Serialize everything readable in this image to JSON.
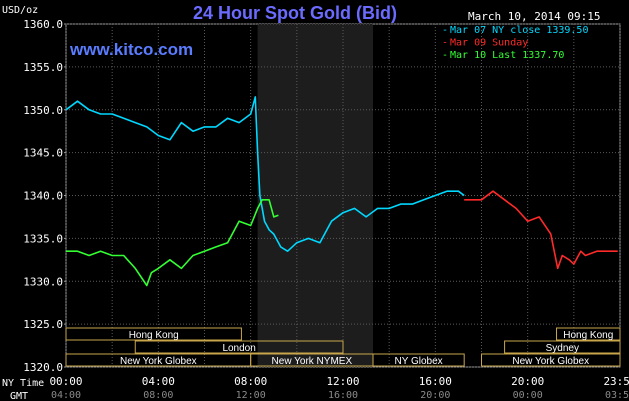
{
  "title": "24 Hour Spot Gold (Bid)",
  "brand": "www.kitco.com",
  "timestamp": "March 10, 2014 09:15",
  "legend": [
    {
      "text": "Mar 07 NY close 1339.50",
      "color": "#00d8ff"
    },
    {
      "text": "Mar 09 Sunday",
      "color": "#ff2a2a"
    },
    {
      "text": "Mar 10 Last 1337.70",
      "color": "#33ff33"
    }
  ],
  "axis": {
    "unit": "USD/oz",
    "ny_time_label": "NY Time",
    "gmt_label": "GMT",
    "y_ticks": [
      "1360.0",
      "1355.0",
      "1350.0",
      "1345.0",
      "1340.0",
      "1335.0",
      "1330.0",
      "1325.0",
      "1320.0"
    ],
    "x_ticks_ny": [
      "00:00",
      "04:00",
      "08:00",
      "12:00",
      "16:00",
      "20:00",
      "23:59"
    ],
    "x_ticks_gmt": [
      "04:00",
      "08:00",
      "12:00",
      "16:00",
      "20:00",
      "00:00",
      "03:59"
    ]
  },
  "sessions": [
    {
      "label": "Hong Kong",
      "start": 0,
      "end": 7.6,
      "row": 0
    },
    {
      "label": "London",
      "start": 3,
      "end": 12,
      "row": 1
    },
    {
      "label": "New York Globex",
      "start": 0,
      "end": 8,
      "row": 2
    },
    {
      "label": "New York NYMEX",
      "start": 8,
      "end": 13.3,
      "row": 2
    },
    {
      "label": "NY Globex",
      "start": 13.3,
      "end": 17.25,
      "row": 2
    },
    {
      "label": "Hong Kong",
      "start": 21.25,
      "end": 24,
      "row": 0
    },
    {
      "label": "Sydney",
      "start": 19,
      "end": 24,
      "row": 1
    },
    {
      "label": "New York Globex",
      "start": 18,
      "end": 24,
      "row": 2
    }
  ],
  "chart_data": {
    "type": "line",
    "title": "24 Hour Spot Gold (Bid)",
    "ylabel": "USD/oz",
    "xlabel": "NY Time",
    "ylim": [
      1320,
      1360
    ],
    "xlim": [
      0,
      24
    ],
    "highlight_range": [
      8.3,
      13.3
    ],
    "series": [
      {
        "name": "Mar 07 NY close 1339.50",
        "color": "#00d8ff",
        "x": [
          0,
          0.5,
          1,
          1.5,
          2,
          2.5,
          3,
          3.5,
          4,
          4.5,
          5,
          5.5,
          6,
          6.5,
          7,
          7.5,
          8,
          8.2,
          8.3,
          8.4,
          8.6,
          8.8,
          9,
          9.3,
          9.6,
          10,
          10.5,
          11,
          11.5,
          12,
          12.5,
          13,
          13.5,
          14,
          14.5,
          15,
          15.5,
          16,
          16.5,
          17,
          17.25
        ],
        "y": [
          1350.0,
          1351.0,
          1350.0,
          1349.5,
          1349.5,
          1349.0,
          1348.5,
          1348.0,
          1347.0,
          1346.5,
          1348.5,
          1347.5,
          1348.0,
          1348.0,
          1349.0,
          1348.5,
          1349.5,
          1351.5,
          1345.0,
          1340.0,
          1337.0,
          1336.0,
          1335.5,
          1334.0,
          1333.5,
          1334.5,
          1335.0,
          1334.5,
          1337.0,
          1338.0,
          1338.5,
          1337.5,
          1338.5,
          1338.5,
          1339.0,
          1339.0,
          1339.5,
          1340.0,
          1340.5,
          1340.5,
          1340.0
        ]
      },
      {
        "name": "Mar 09 Sunday",
        "color": "#ff2a2a",
        "x": [
          17.25,
          17.5,
          18,
          18.5,
          19,
          19.5,
          20,
          20.5,
          21,
          21.3,
          21.5,
          21.8,
          22,
          22.3,
          22.5,
          23,
          23.5,
          23.9
        ],
        "y": [
          1339.5,
          1339.5,
          1339.5,
          1340.5,
          1339.5,
          1338.5,
          1337.0,
          1337.5,
          1335.5,
          1331.5,
          1333.0,
          1332.5,
          1332.0,
          1333.5,
          1333.0,
          1333.5,
          1333.5,
          1333.5
        ]
      },
      {
        "name": "Mar 10 Last 1337.70",
        "color": "#33ff33",
        "x": [
          0,
          0.5,
          1,
          1.5,
          2,
          2.5,
          3,
          3.5,
          3.7,
          4,
          4.5,
          5,
          5.5,
          6,
          6.5,
          7,
          7.5,
          8,
          8.3,
          8.5,
          8.8,
          9,
          9.2
        ],
        "y": [
          1333.5,
          1333.5,
          1333.0,
          1333.5,
          1333.0,
          1333.0,
          1331.5,
          1329.5,
          1331.0,
          1331.5,
          1332.5,
          1331.5,
          1333.0,
          1333.5,
          1334.0,
          1334.5,
          1337.0,
          1336.5,
          1338.5,
          1339.5,
          1339.5,
          1337.5,
          1337.7
        ]
      }
    ]
  }
}
